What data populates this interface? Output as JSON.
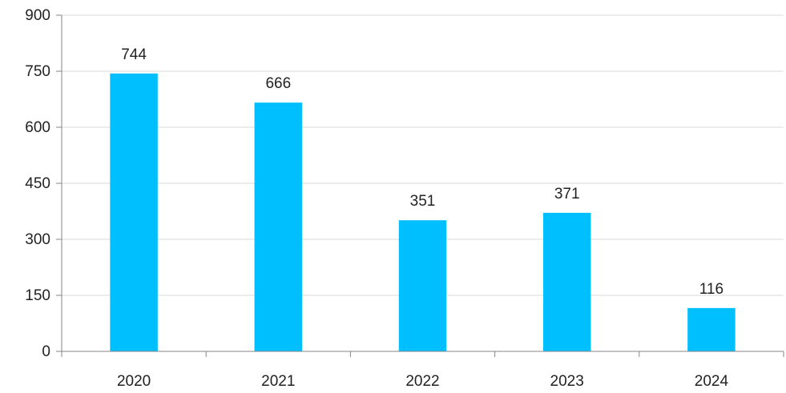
{
  "chart_data": {
    "type": "bar",
    "categories": [
      "2020",
      "2021",
      "2022",
      "2023",
      "2024"
    ],
    "values": [
      744,
      666,
      351,
      371,
      116
    ],
    "data_labels": [
      "744",
      "666",
      "351",
      "371",
      "116"
    ],
    "yticks": [
      "0",
      "150",
      "300",
      "450",
      "600",
      "750",
      "900"
    ],
    "ylim": [
      0,
      900
    ],
    "grid": true,
    "bar_color": "#00BFFF",
    "gridline_color": "#D9D9D9",
    "axis_color": "#868686",
    "title": "",
    "xlabel": "",
    "ylabel": ""
  }
}
